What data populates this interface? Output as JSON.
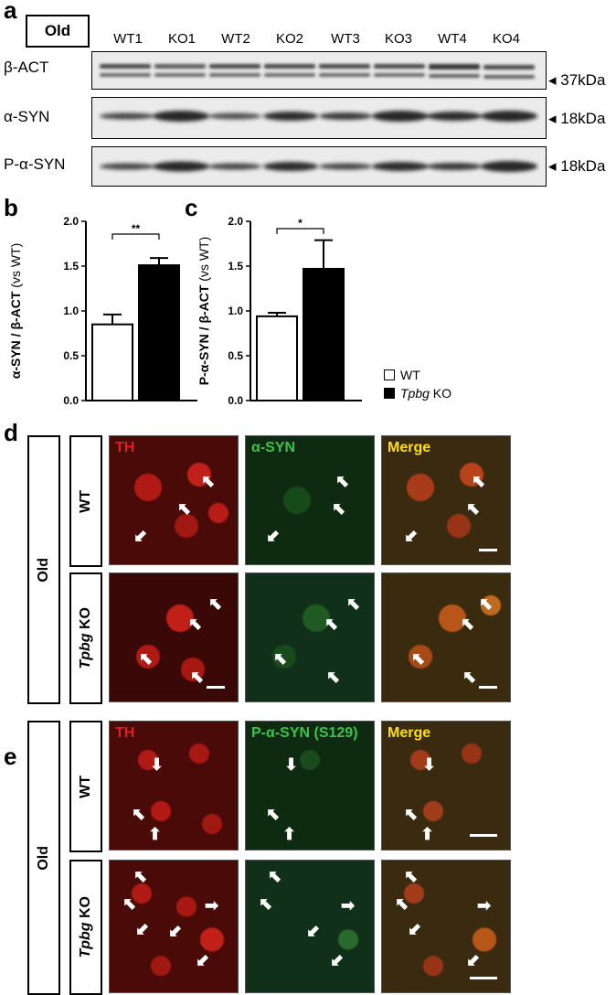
{
  "panels": {
    "a": "a",
    "b": "b",
    "c": "c",
    "d": "d",
    "e": "e"
  },
  "group_label": "Old",
  "lanes": [
    "WT1",
    "KO1",
    "WT2",
    "KO2",
    "WT3",
    "KO3",
    "WT4",
    "KO4"
  ],
  "blots": [
    {
      "label": "β-ACT",
      "kda": "◂ 37kDa"
    },
    {
      "label": "α-SYN",
      "kda": "◂ 18kDa"
    },
    {
      "label": "P-α-SYN",
      "kda": "◂ 18kDa"
    }
  ],
  "chart_data": [
    {
      "type": "bar",
      "categories": [
        "WT",
        "Tpbg KO"
      ],
      "values": [
        0.85,
        1.51
      ],
      "errors": [
        0.11,
        0.08
      ],
      "ylabel_bold": "α-SYN / β-ACT",
      "ylabel_unit": "(vs WT)",
      "ylim": [
        0,
        2.0
      ],
      "yticks": [
        "0.0",
        "0.5",
        "1.0",
        "1.5",
        "2.0"
      ],
      "significance": "**",
      "colors": [
        "#ffffff",
        "#000000"
      ]
    },
    {
      "type": "bar",
      "categories": [
        "WT",
        "Tpbg KO"
      ],
      "values": [
        0.94,
        1.47
      ],
      "errors": [
        0.04,
        0.32
      ],
      "ylabel_bold": "P-α-SYN / β-ACT",
      "ylabel_unit": "(vs WT)",
      "ylim": [
        0,
        2.0
      ],
      "yticks": [
        "0.0",
        "0.5",
        "1.0",
        "1.5",
        "2.0"
      ],
      "significance": "*",
      "colors": [
        "#ffffff",
        "#000000"
      ]
    }
  ],
  "legend": {
    "wt": "WT",
    "ko_gene": "Tpbg",
    "ko_suffix": " KO"
  },
  "row_labels": {
    "wt": "WT",
    "ko_gene": "Tpbg",
    "ko_suffix": " KO"
  },
  "panel_d": {
    "channels": [
      "TH",
      "α-SYN",
      "Merge"
    ]
  },
  "panel_e": {
    "channels": [
      "TH",
      "P-α-SYN (S129)",
      "Merge"
    ]
  },
  "colors": {
    "th": "#e02020",
    "syn": "#3cc24c",
    "merge": "#ffe000"
  }
}
